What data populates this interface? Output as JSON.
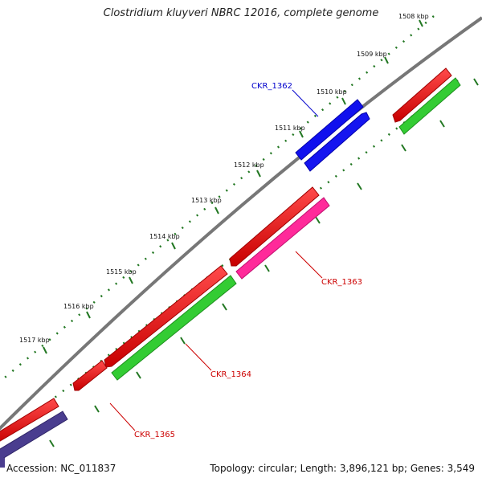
{
  "title": "Clostridium kluyveri NBRC 12016, complete genome",
  "footer": {
    "accession": "Accession: NC_011837",
    "summary": "Topology: circular; Length: 3,896,121 bp; Genes: 3,549"
  },
  "ticks": [
    "1508 kbp",
    "1509 kbp",
    "1510 kbp",
    "1511 kbp",
    "1512 kbp",
    "1513 kbp",
    "1514 kbp",
    "1515 kbp",
    "1516 kbp",
    "1517 kbp"
  ],
  "genes": [
    {
      "label": "CKR_1362",
      "color": "#0000cc"
    },
    {
      "label": "CKR_1363",
      "color": "#cc0000"
    },
    {
      "label": "CKR_1364",
      "color": "#cc0000"
    },
    {
      "label": "CKR_1365",
      "color": "#cc0000"
    }
  ],
  "colors": {
    "backbone": "#808080",
    "tick_marks": "#227722",
    "cds": "#ee0000",
    "forward_gene": "#0000ee",
    "reverse_gene_green": "#33cc33",
    "reverse_gene_pink": "#ff3399",
    "reverse_gene_purple": "#4a3d8f"
  }
}
